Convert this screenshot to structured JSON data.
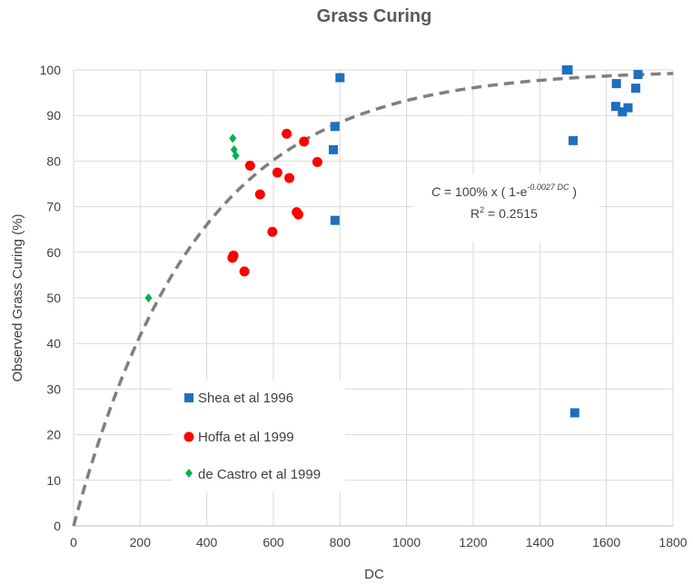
{
  "chart_data": {
    "type": "scatter",
    "title": "Grass Curing",
    "xlabel": "DC",
    "ylabel": "Observed Grass Curing (%)",
    "xlim": [
      0,
      1800
    ],
    "ylim": [
      0,
      100
    ],
    "xticks": [
      0,
      200,
      400,
      600,
      800,
      1000,
      1200,
      1400,
      1600,
      1800
    ],
    "yticks": [
      0,
      10,
      20,
      30,
      40,
      50,
      60,
      70,
      80,
      90,
      100
    ],
    "grid": true,
    "legend_position": "left-bottom inside",
    "series": [
      {
        "name": "Shea et al 1996",
        "marker": "square",
        "color": "#1f6fbf",
        "points": [
          [
            1480,
            100
          ],
          [
            1485,
            100
          ],
          [
            800,
            98.3
          ],
          [
            785,
            87.6
          ],
          [
            780,
            82.5
          ],
          [
            785,
            67
          ],
          [
            1500,
            84.5
          ],
          [
            1505,
            24.8
          ],
          [
            1630,
            97
          ],
          [
            1628,
            92
          ],
          [
            1648,
            90.8
          ],
          [
            1665,
            91.7
          ],
          [
            1688,
            96
          ],
          [
            1695,
            99
          ]
        ]
      },
      {
        "name": "Hoffa et al 1999",
        "marker": "circle",
        "color": "#ff0000",
        "points": [
          [
            480,
            59.3
          ],
          [
            477,
            58.8
          ],
          [
            513,
            55.8
          ],
          [
            530,
            79
          ],
          [
            560,
            72.7
          ],
          [
            597,
            64.5
          ],
          [
            612,
            77.5
          ],
          [
            640,
            86
          ],
          [
            648,
            76.3
          ],
          [
            670,
            68.8
          ],
          [
            675,
            68.3
          ],
          [
            692,
            84.3
          ],
          [
            732,
            79.8
          ]
        ]
      },
      {
        "name": "de Castro et al 1999",
        "marker": "diamond",
        "color": "#00b050",
        "points": [
          [
            225,
            50
          ],
          [
            478,
            85
          ],
          [
            482,
            82.5
          ],
          [
            487,
            81.2
          ]
        ]
      }
    ],
    "trendline": {
      "style": "dashed",
      "color": "#7f7f7f",
      "coefficient": 0.0027,
      "r_squared": 0.2515
    },
    "annotation": {
      "var": "C",
      "mid": " = 100% x ( 1-e",
      "exponent": "-0.0027 DC",
      "close": " )",
      "r2_prefix": "R",
      "r2_sup": "2",
      "r2_suffix": " = 0.2515"
    }
  }
}
